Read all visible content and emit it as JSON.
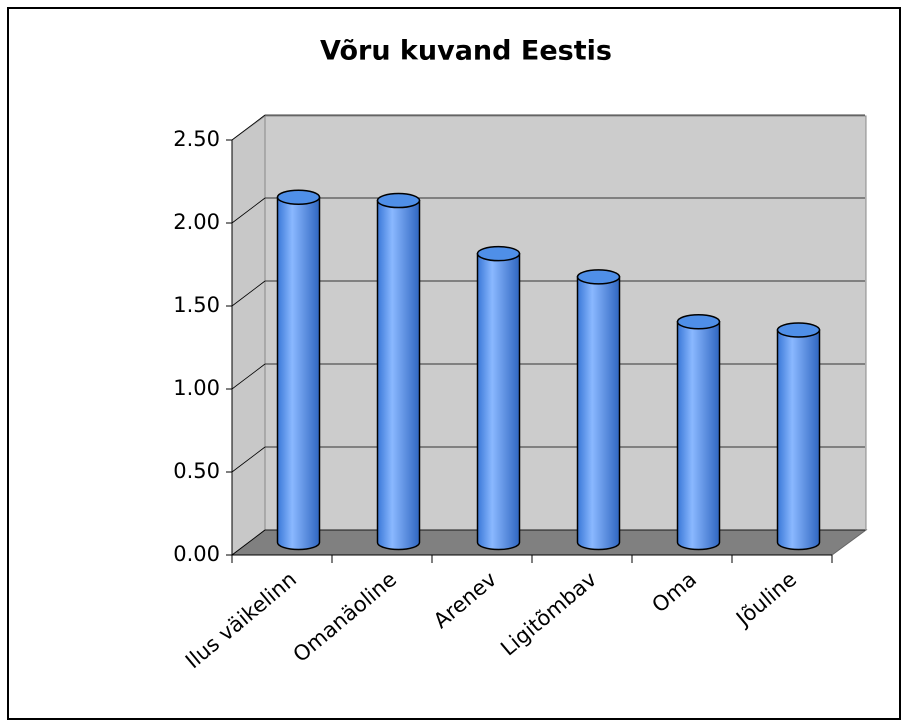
{
  "chart_data": {
    "type": "bar",
    "title": "Võru kuvand Eestis",
    "categories": [
      "Ilus väikelinn",
      "Omanäoline",
      "Arenev",
      "Ligitõmbav",
      "Oma",
      "Jõuline"
    ],
    "values": [
      2.08,
      2.06,
      1.74,
      1.6,
      1.33,
      1.28
    ],
    "color": "#4f8fe8",
    "ylim": [
      0,
      2.5
    ],
    "yticks": [
      {
        "value": 0,
        "label": "0.00"
      },
      {
        "value": 0.5,
        "label": "0.50"
      },
      {
        "value": 1,
        "label": "1.00"
      },
      {
        "value": 1.5,
        "label": "1.50"
      },
      {
        "value": 2,
        "label": "2.00"
      },
      {
        "value": 2.5,
        "label": "2.50"
      }
    ],
    "grid": true
  }
}
